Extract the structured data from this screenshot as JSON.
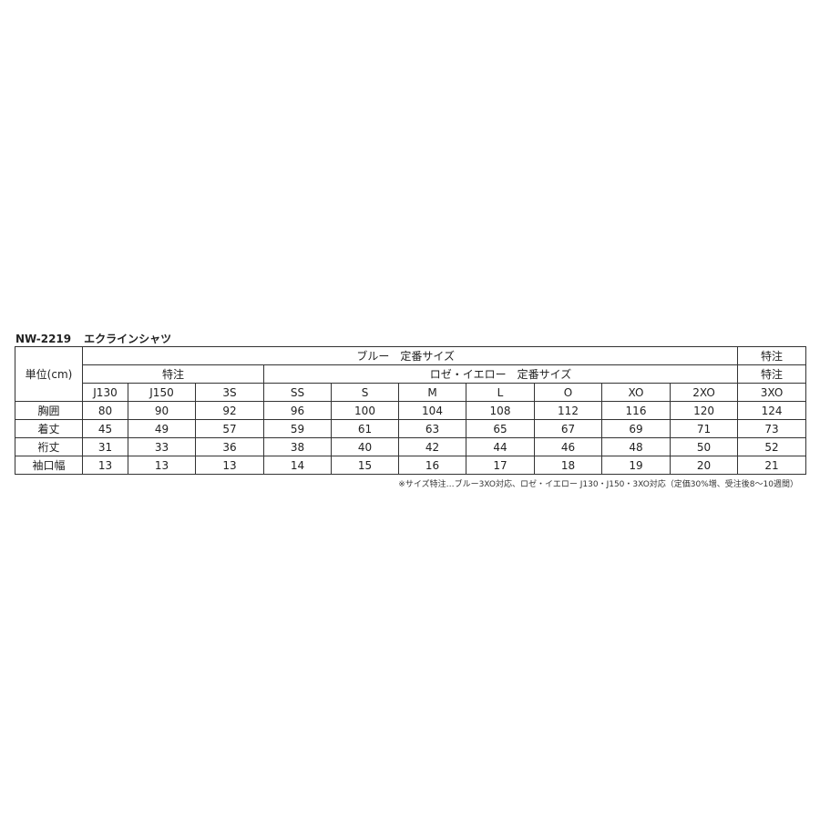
{
  "title": {
    "code": "NW-2219",
    "name": "エクラインシャツ"
  },
  "table": {
    "unit_label": "単位(cm)",
    "header_row1": {
      "blue": "ブルー　定番サイズ",
      "special": "特注"
    },
    "header_row2": {
      "special_left": "特注",
      "rose": "ロゼ・イエロー　定番サイズ",
      "special_right": "特注"
    },
    "sizes": [
      "J130",
      "J150",
      "3S",
      "SS",
      "S",
      "M",
      "L",
      "O",
      "XO",
      "2XO",
      "3XO"
    ],
    "rows": [
      {
        "label": "胸囲",
        "values": [
          "80",
          "90",
          "92",
          "96",
          "100",
          "104",
          "108",
          "112",
          "116",
          "120",
          "124"
        ]
      },
      {
        "label": "着丈",
        "values": [
          "45",
          "49",
          "57",
          "59",
          "61",
          "63",
          "65",
          "67",
          "69",
          "71",
          "73"
        ]
      },
      {
        "label": "裄丈",
        "values": [
          "31",
          "33",
          "36",
          "38",
          "40",
          "42",
          "44",
          "46",
          "48",
          "50",
          "52"
        ]
      },
      {
        "label": "袖口幅",
        "values": [
          "13",
          "13",
          "13",
          "14",
          "15",
          "16",
          "17",
          "18",
          "19",
          "20",
          "21"
        ]
      }
    ]
  },
  "note": "※サイズ特注…ブルー3XO対応、ロゼ・イエロー J130・J150・3XO対応（定価30%増、受注後8～10週間）"
}
